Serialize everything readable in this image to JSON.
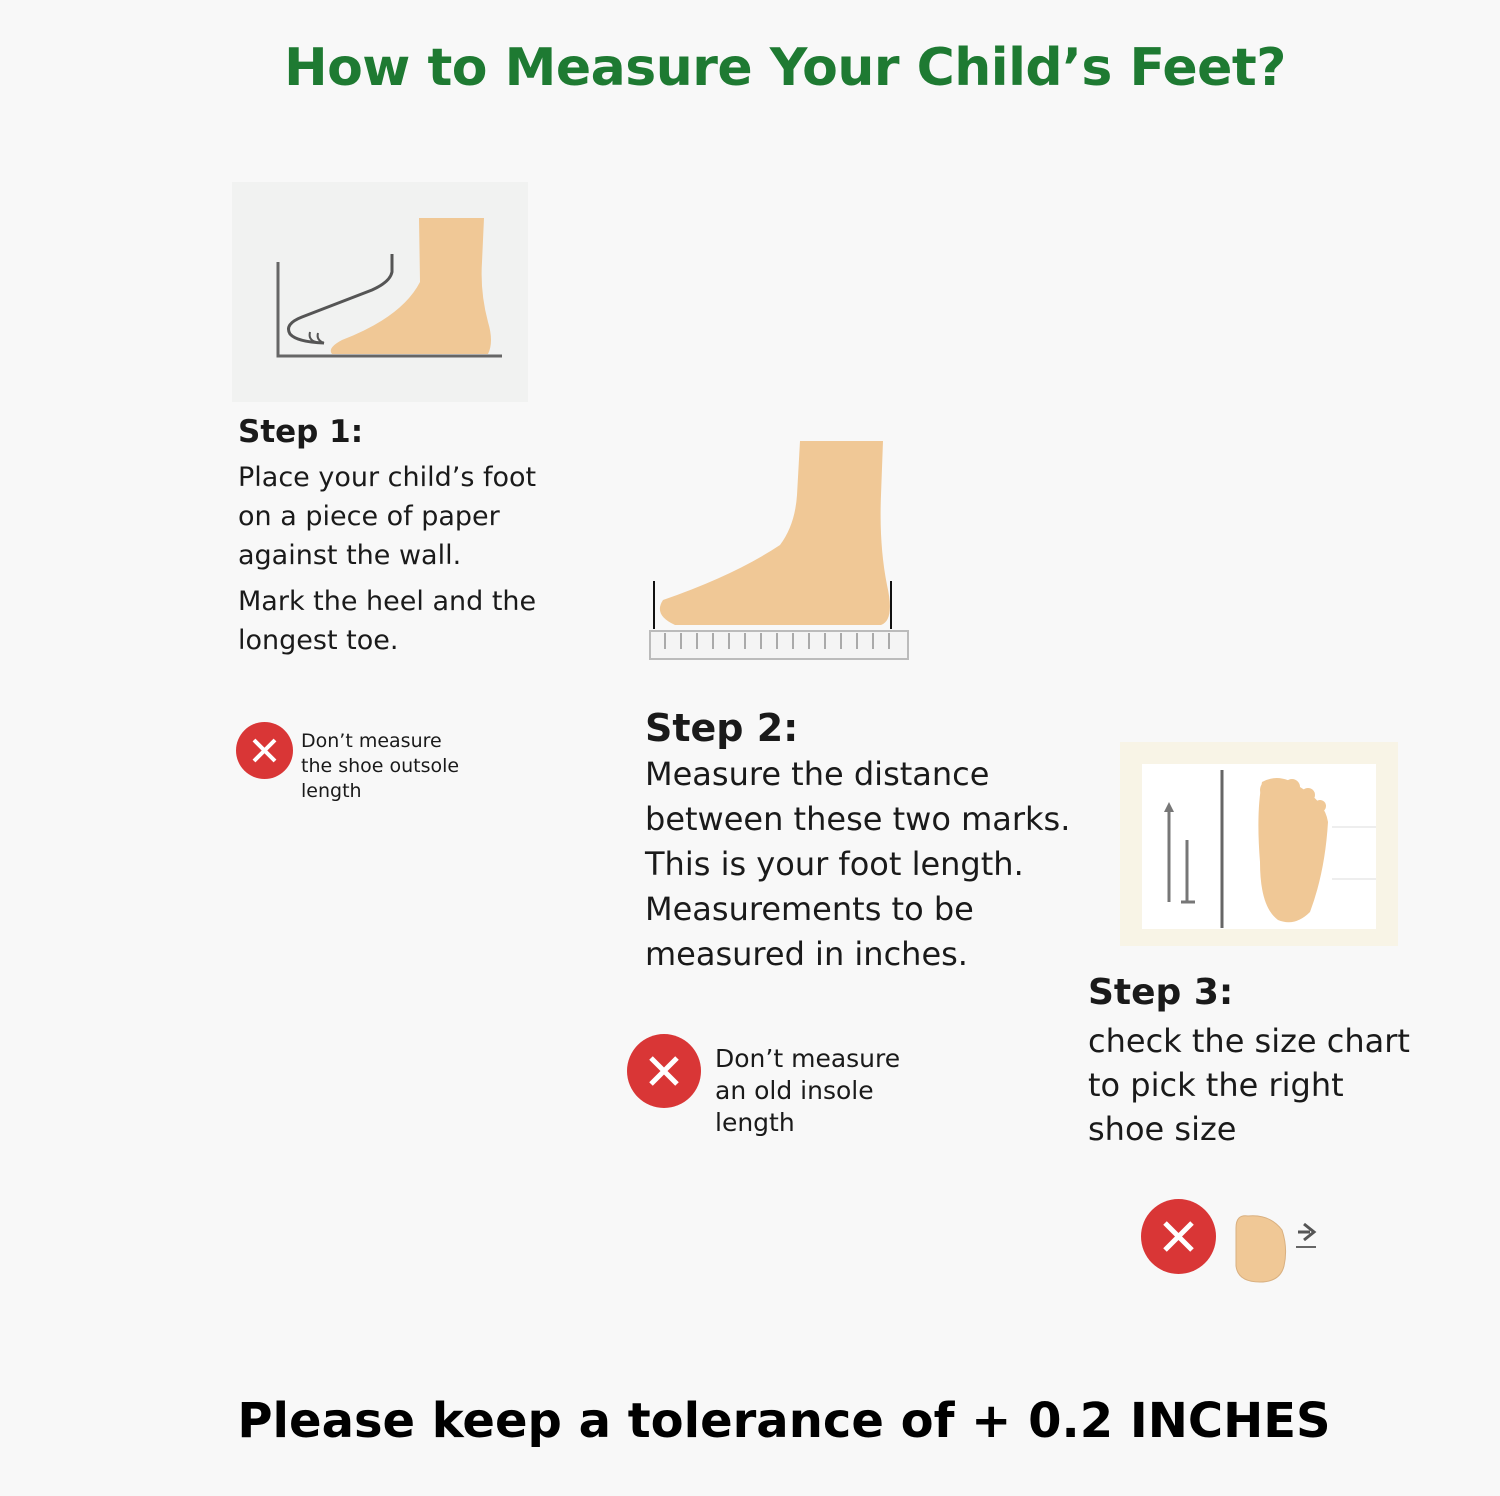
{
  "title": "How to Measure Your Child’s Feet?",
  "steps": [
    {
      "heading": "Step 1:",
      "lines": [
        "Place your child’s foot",
        "on a piece of paper",
        "against the wall.",
        "Mark the heel and the",
        "longest toe."
      ],
      "warning": [
        "Don’t measure",
        "the shoe outsole",
        "length"
      ]
    },
    {
      "heading": "Step 2:",
      "lines": [
        "Measure the distance",
        "between these two marks.",
        "This is your foot length.",
        "Measurements to be",
        "measured in inches."
      ],
      "warning": [
        "Don’t measure",
        "an old insole",
        "length"
      ]
    },
    {
      "heading": "Step 3:",
      "lines": [
        "check the size chart",
        "to pick the right",
        "shoe size"
      ]
    }
  ],
  "footer": "Please keep a tolerance of + 0.2 INCHES",
  "colors": {
    "title": "#1e7a32",
    "warning": "#d93636",
    "skin": "#f0c896",
    "line": "#555555"
  },
  "icons": [
    "foot-against-wall-illustration",
    "foot-on-ruler-illustration",
    "foot-on-size-chart-illustration",
    "x-circle-icon",
    "toe-space-icon"
  ]
}
